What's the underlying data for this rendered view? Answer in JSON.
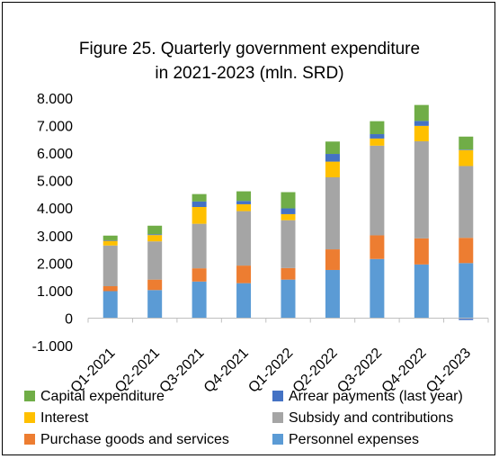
{
  "chart_data": {
    "type": "bar",
    "stacked": true,
    "title_line1": "Figure 25. Quarterly government expenditure",
    "title_line2": "in 2021-2023 (mln. SRD)",
    "xlabel": "",
    "ylabel": "",
    "ylim": [
      -1000,
      8000
    ],
    "yticks": [
      -1000,
      0,
      1000,
      2000,
      3000,
      4000,
      5000,
      6000,
      7000,
      8000
    ],
    "ytick_labels": [
      "-1.000",
      "0",
      "1.000",
      "2.000",
      "3.000",
      "4.000",
      "5.000",
      "6.000",
      "7.000",
      "8.000"
    ],
    "grid": false,
    "legend_position": "bottom",
    "categories": [
      "Q1-2021",
      "Q2-2021",
      "Q3-2021",
      "Q4-2021",
      "Q1-2022",
      "Q2-2022",
      "Q3-2022",
      "Q4-2022",
      "Q1-2023"
    ],
    "series": [
      {
        "name": "Personnel expenses",
        "color": "#5B9BD5",
        "values": [
          980,
          1020,
          1330,
          1270,
          1400,
          1750,
          2150,
          1950,
          2000
        ]
      },
      {
        "name": "Purchase goods and services",
        "color": "#ED7D31",
        "values": [
          180,
          380,
          480,
          640,
          420,
          750,
          860,
          950,
          920
        ]
      },
      {
        "name": "Subsidy and contributions",
        "color": "#A5A5A5",
        "values": [
          1480,
          1390,
          1620,
          1980,
          1740,
          2620,
          3260,
          3530,
          2610
        ]
      },
      {
        "name": "Interest",
        "color": "#FFC000",
        "values": [
          170,
          230,
          610,
          250,
          220,
          570,
          260,
          560,
          580
        ]
      },
      {
        "name": "Arrear payments (last year)",
        "color": "#4472C4",
        "values": [
          20,
          30,
          200,
          120,
          210,
          280,
          160,
          180,
          20
        ]
      },
      {
        "name": "Capital expenditure",
        "color": "#70AD47",
        "values": [
          170,
          310,
          270,
          350,
          590,
          450,
          470,
          580,
          470
        ]
      }
    ],
    "negative_series": [
      {
        "name": "Arrear payments (last year)",
        "color": "#4472C4",
        "values": [
          0,
          0,
          0,
          0,
          0,
          0,
          0,
          0,
          -70
        ]
      }
    ],
    "legend_order": [
      "Capital expenditure",
      "Arrear payments (last year)",
      "Interest",
      "Subsidy and contributions",
      "Purchase goods and services",
      "Personnel expenses"
    ]
  }
}
